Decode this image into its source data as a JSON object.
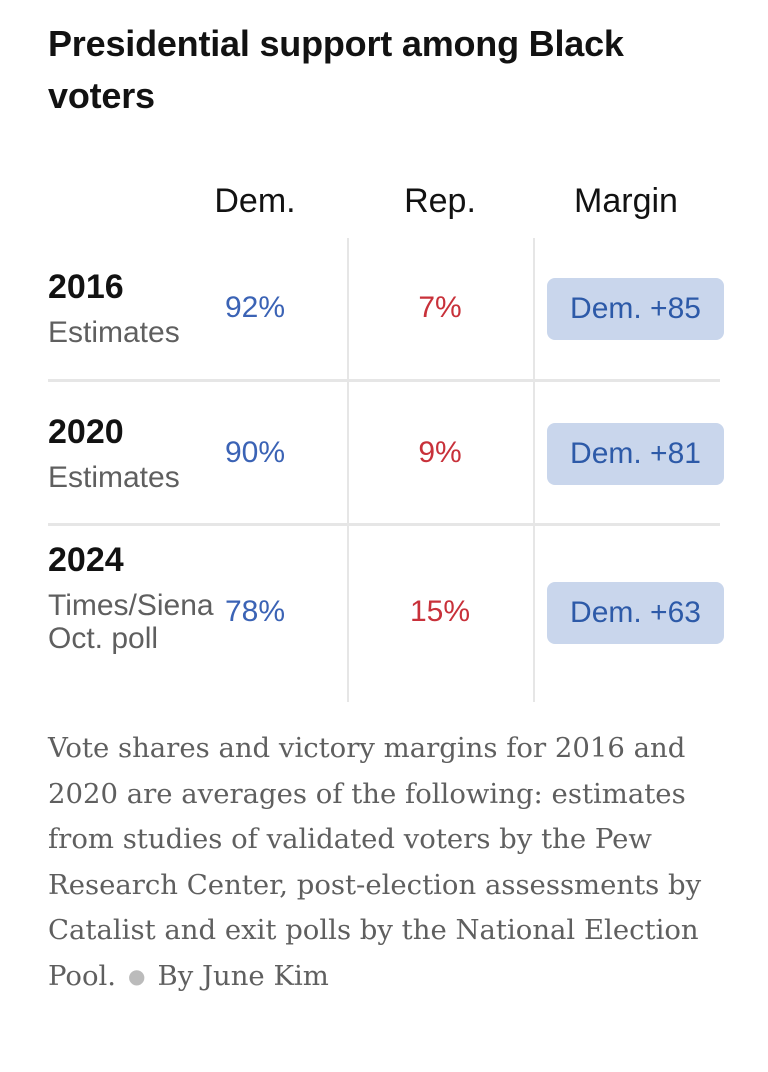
{
  "chart_data": {
    "type": "table",
    "title": "Presidential support among Black voters",
    "columns": [
      "Dem.",
      "Rep.",
      "Margin"
    ],
    "rows": [
      {
        "year": "2016",
        "source": "Estimates",
        "dem": "92%",
        "rep": "7%",
        "margin": "Dem. +85"
      },
      {
        "year": "2020",
        "source": "Estimates",
        "dem": "90%",
        "rep": "9%",
        "margin": "Dem. +81"
      },
      {
        "year": "2024",
        "source": "Times/Siena Oct. poll",
        "dem": "78%",
        "rep": "15%",
        "margin": "Dem. +63"
      }
    ],
    "note": "Vote shares and victory margins for 2016 and 2020 are averages of the following: estimates from studies of validated voters by the Pew Research Center, post-election assessments by Catalist and exit polls by the National Election Pool.",
    "credit": "By June Kim"
  },
  "colors": {
    "dem": "#3b63b5",
    "rep": "#c8313a",
    "margin_badge_bg": "#c9d6ec",
    "margin_badge_text": "#2d5aa8",
    "divider": "#e6e6e6",
    "secondary_text": "#5f5f5f"
  }
}
